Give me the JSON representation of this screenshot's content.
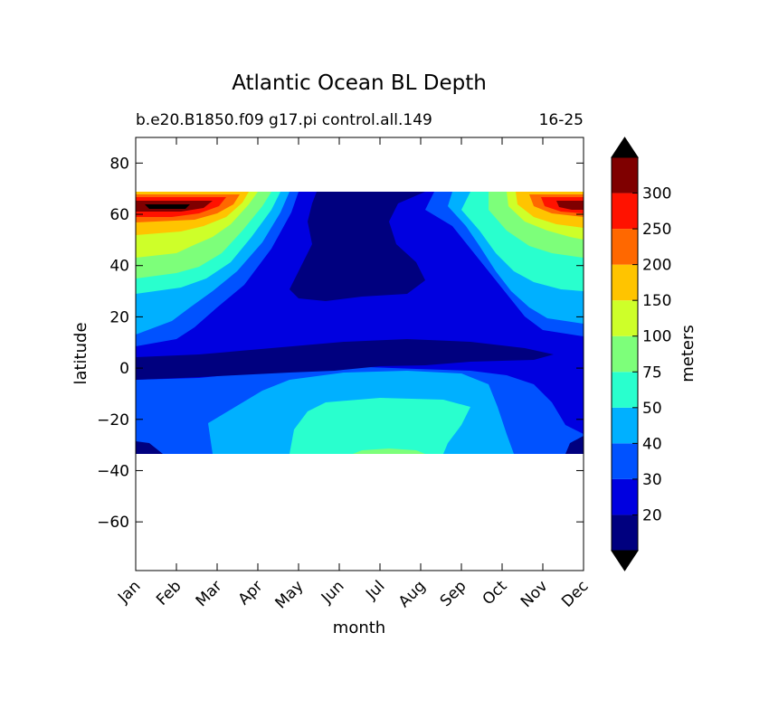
{
  "chart_data": {
    "type": "heatmap",
    "title": "Atlantic Ocean BL Depth",
    "subtitle_left": "b.e20.B1850.f09 g17.pi control.all.149",
    "subtitle_right": "16-25",
    "xlabel": "month",
    "ylabel": "latitude",
    "x_ticks": [
      "Jan",
      "Feb",
      "Mar",
      "Apr",
      "May",
      "Jun",
      "Jul",
      "Aug",
      "Sep",
      "Oct",
      "Nov",
      "Dec"
    ],
    "y_ticks": [
      80,
      60,
      40,
      20,
      0,
      -20,
      -40,
      -60
    ],
    "ylim": [
      -79,
      90
    ],
    "data_lat_range": [
      -34,
      69
    ],
    "grid": false,
    "colorbar": {
      "label": "meters",
      "extend": "both",
      "placement": "right",
      "tick_labels": [
        "20",
        "30",
        "40",
        "50",
        "75",
        "100",
        "150",
        "200",
        "250",
        "300"
      ],
      "levels": [
        10,
        20,
        30,
        40,
        50,
        75,
        100,
        150,
        200,
        250,
        300,
        350
      ],
      "colors": [
        "#00007f",
        "#0000e0",
        "#0052ff",
        "#00b0ff",
        "#29ffce",
        "#7dff7a",
        "#ceff29",
        "#ffc400",
        "#ff6800",
        "#ff1200",
        "#7f0000"
      ],
      "under_color": "#000000",
      "over_color": "#000000"
    },
    "features": [
      {
        "region": "60-69N",
        "months": "Dec-Mar",
        "depth_m": "250-350"
      },
      {
        "region": "40-55N",
        "months": "Jan-Mar",
        "depth_m": "100-150"
      },
      {
        "region": "0-15N",
        "months": "all year",
        "depth_m": "<20"
      },
      {
        "region": "20-60N",
        "months": "May-Aug",
        "depth_m": "<20"
      },
      {
        "region": "15-34S",
        "months": "Jun-Sep",
        "depth_m": "50-100"
      }
    ]
  }
}
